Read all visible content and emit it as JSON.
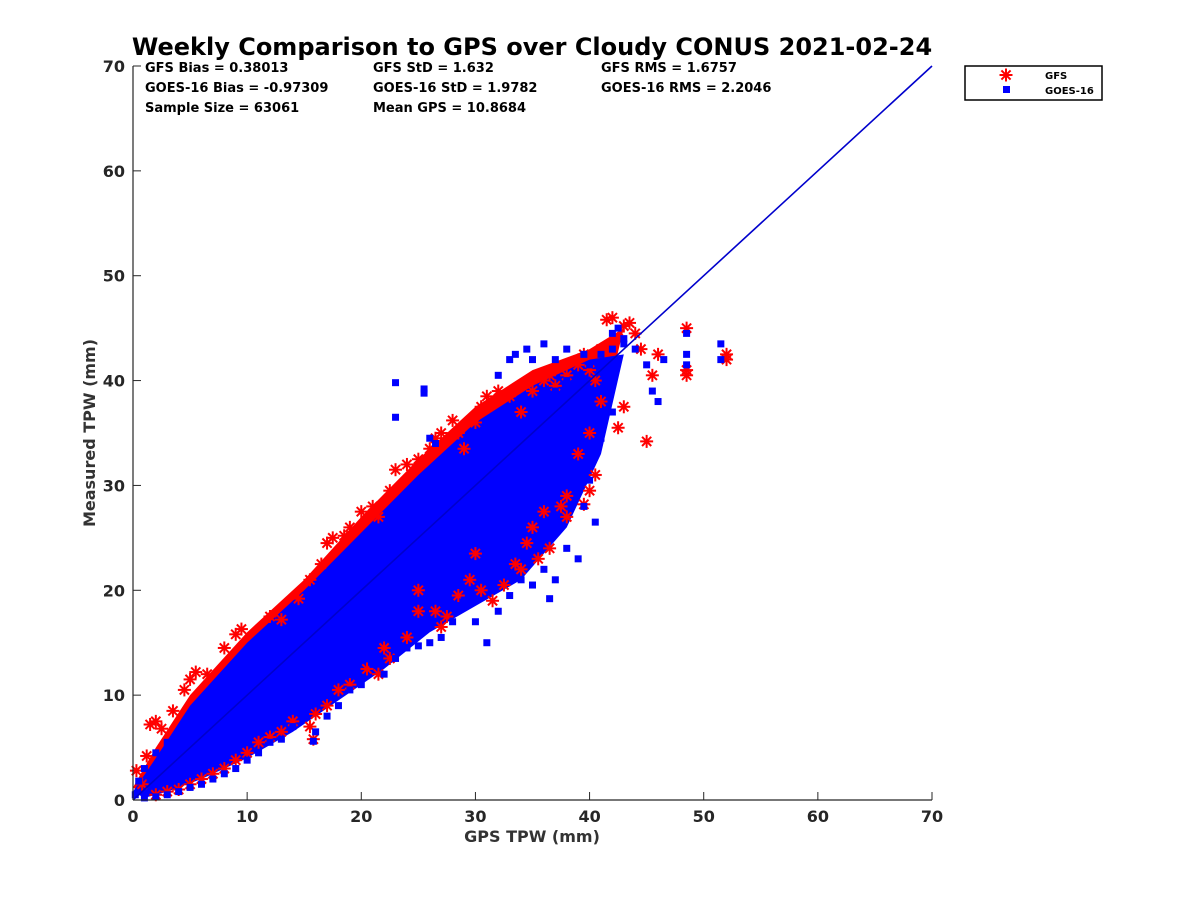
{
  "chart_data": {
    "type": "scatter",
    "title": "Weekly Comparison to GPS over Cloudy CONUS 2021-02-24",
    "xlabel": "GPS TPW (mm)",
    "ylabel": "Measured TPW (mm)",
    "xlim": [
      0,
      70
    ],
    "ylim": [
      0,
      70
    ],
    "xticks": [
      0,
      10,
      20,
      30,
      40,
      50,
      60,
      70
    ],
    "yticks": [
      0,
      10,
      20,
      30,
      40,
      50,
      60,
      70
    ],
    "grid": false,
    "legend_position": "top-right outside",
    "colors": {
      "GFS": "#ff0000",
      "GOES-16": "#0000ff",
      "one_to_one": "#0000cc"
    },
    "reference_line": {
      "x": [
        0,
        70
      ],
      "y": [
        0,
        70
      ]
    },
    "stats": [
      "GFS Bias = 0.38013",
      "GFS StD = 1.632",
      "GFS RMS = 1.6757",
      "GOES-16 Bias = -0.97309",
      "GOES-16 StD = 1.9782",
      "GOES-16 RMS = 2.2046",
      "Sample Size = 63061",
      "Mean GPS = 10.8684"
    ],
    "series": [
      {
        "name": "GFS",
        "marker": "asterisk",
        "points": [
          [
            0.3,
            2.8
          ],
          [
            0.8,
            1.5
          ],
          [
            1.2,
            4.2
          ],
          [
            1.5,
            7.2
          ],
          [
            2,
            7.5
          ],
          [
            2.5,
            6.8
          ],
          [
            3.5,
            8.5
          ],
          [
            4.5,
            10.5
          ],
          [
            5,
            11.5
          ],
          [
            5.5,
            12.2
          ],
          [
            6.5,
            12
          ],
          [
            8,
            14.5
          ],
          [
            9,
            15.8
          ],
          [
            9.5,
            16.3
          ],
          [
            12,
            17.5
          ],
          [
            13,
            17.2
          ],
          [
            14.5,
            19.2
          ],
          [
            15.5,
            21
          ],
          [
            16.5,
            22.5
          ],
          [
            17,
            24.5
          ],
          [
            17.5,
            25
          ],
          [
            18.5,
            25.2
          ],
          [
            19,
            26
          ],
          [
            20,
            27.5
          ],
          [
            21,
            28
          ],
          [
            21.5,
            27
          ],
          [
            22.5,
            29.5
          ],
          [
            23,
            31.5
          ],
          [
            24,
            32
          ],
          [
            25,
            32.5
          ],
          [
            26,
            33.5
          ],
          [
            26.5,
            34.5
          ],
          [
            27,
            35
          ],
          [
            28,
            36.2
          ],
          [
            28.5,
            35
          ],
          [
            29,
            33.5
          ],
          [
            30,
            36
          ],
          [
            30.5,
            37.5
          ],
          [
            31,
            38.5
          ],
          [
            32,
            39
          ],
          [
            33,
            38.5
          ],
          [
            34,
            37
          ],
          [
            35,
            39
          ],
          [
            36,
            40
          ],
          [
            36.5,
            40.5
          ],
          [
            37,
            39.5
          ],
          [
            38,
            40.5
          ],
          [
            39,
            41.5
          ],
          [
            39.5,
            42.5
          ],
          [
            40,
            41
          ],
          [
            40.5,
            40
          ],
          [
            41,
            43
          ],
          [
            41.5,
            45.8
          ],
          [
            42,
            46
          ],
          [
            42.5,
            44
          ],
          [
            43,
            45.2
          ],
          [
            43.5,
            45.5
          ],
          [
            44,
            44.5
          ],
          [
            41,
            38
          ],
          [
            40,
            35
          ],
          [
            39,
            33
          ],
          [
            38,
            29
          ],
          [
            37.5,
            28
          ],
          [
            36,
            27.5
          ],
          [
            35,
            26
          ],
          [
            34.5,
            24.5
          ],
          [
            33.5,
            22.5
          ],
          [
            32.5,
            20.5
          ],
          [
            31.5,
            19
          ],
          [
            30.5,
            20
          ],
          [
            29.5,
            21
          ],
          [
            28.5,
            19.5
          ],
          [
            27.5,
            17.5
          ],
          [
            27,
            16.5
          ],
          [
            26.5,
            18
          ],
          [
            25,
            18
          ],
          [
            24,
            15.5
          ],
          [
            22.5,
            13.5
          ],
          [
            22,
            14.5
          ],
          [
            21.5,
            12
          ],
          [
            20.5,
            12.5
          ],
          [
            19,
            11
          ],
          [
            18,
            10.5
          ],
          [
            17,
            9
          ],
          [
            16,
            8.2
          ],
          [
            15.5,
            7
          ],
          [
            15.8,
            5.8
          ],
          [
            14,
            7.5
          ],
          [
            13,
            6.5
          ],
          [
            12,
            6
          ],
          [
            11,
            5.5
          ],
          [
            10,
            4.5
          ],
          [
            9,
            3.8
          ],
          [
            8,
            3
          ],
          [
            7,
            2.5
          ],
          [
            6,
            2
          ],
          [
            5,
            1.5
          ],
          [
            4,
            1
          ],
          [
            3,
            0.8
          ],
          [
            2,
            0.5
          ],
          [
            43,
            37.5
          ],
          [
            42.5,
            35.5
          ],
          [
            44.5,
            43
          ],
          [
            45,
            34.2
          ],
          [
            45.5,
            40.5
          ],
          [
            46,
            42.5
          ],
          [
            48.5,
            41
          ],
          [
            48.5,
            40.5
          ],
          [
            48.5,
            45
          ],
          [
            52,
            42
          ],
          [
            52,
            42.5
          ],
          [
            40.5,
            31
          ],
          [
            40,
            29.5
          ],
          [
            39.5,
            28.2
          ],
          [
            38,
            27
          ],
          [
            36.5,
            24
          ],
          [
            35.5,
            23
          ],
          [
            34,
            22
          ],
          [
            30,
            23.5
          ],
          [
            25,
            20
          ]
        ]
      },
      {
        "name": "GOES-16",
        "marker": "square",
        "points": [
          [
            0.2,
            0.5
          ],
          [
            0.5,
            1.8
          ],
          [
            1,
            3
          ],
          [
            1.5,
            2
          ],
          [
            2,
            4.5
          ],
          [
            3,
            5.5
          ],
          [
            3.5,
            3.5
          ],
          [
            4,
            6.5
          ],
          [
            5,
            7.5
          ],
          [
            5.5,
            5
          ],
          [
            6,
            8.5
          ],
          [
            7,
            9.5
          ],
          [
            7.5,
            7
          ],
          [
            8,
            10.5
          ],
          [
            9,
            11.5
          ],
          [
            9.5,
            9
          ],
          [
            10,
            12
          ],
          [
            11,
            13
          ],
          [
            11.5,
            10.5
          ],
          [
            12,
            14
          ],
          [
            13,
            15
          ],
          [
            13.5,
            12.5
          ],
          [
            14,
            16
          ],
          [
            15,
            17
          ],
          [
            15.5,
            14.5
          ],
          [
            16,
            18
          ],
          [
            17,
            19
          ],
          [
            17.5,
            16.5
          ],
          [
            18,
            20
          ],
          [
            19,
            21
          ],
          [
            19.5,
            18.5
          ],
          [
            20,
            22
          ],
          [
            21,
            23
          ],
          [
            21.5,
            20.5
          ],
          [
            22,
            24
          ],
          [
            23,
            25
          ],
          [
            23.5,
            22.5
          ],
          [
            24,
            26
          ],
          [
            25,
            27
          ],
          [
            25.5,
            24.5
          ],
          [
            26,
            28
          ],
          [
            27,
            29
          ],
          [
            27.5,
            26.5
          ],
          [
            28,
            30
          ],
          [
            29,
            31
          ],
          [
            29.5,
            28.5
          ],
          [
            30,
            32
          ],
          [
            31,
            33
          ],
          [
            31.5,
            30.5
          ],
          [
            32,
            34
          ],
          [
            33,
            35
          ],
          [
            33.5,
            32.5
          ],
          [
            34,
            36
          ],
          [
            35,
            37
          ],
          [
            35.5,
            34.5
          ],
          [
            36,
            38
          ],
          [
            37,
            39
          ],
          [
            37.5,
            36.5
          ],
          [
            38,
            40
          ],
          [
            39,
            40.5
          ],
          [
            39.5,
            38.5
          ],
          [
            40,
            41.5
          ],
          [
            41,
            42.5
          ],
          [
            41.5,
            40
          ],
          [
            42,
            43
          ],
          [
            43,
            43.5
          ],
          [
            23,
            39.8
          ],
          [
            23,
            36.5
          ],
          [
            25.5,
            39.2
          ],
          [
            25.5,
            38.8
          ],
          [
            26,
            34.5
          ],
          [
            26.5,
            34
          ],
          [
            32,
            40.5
          ],
          [
            33,
            42
          ],
          [
            33.5,
            42.5
          ],
          [
            34.5,
            43
          ],
          [
            35,
            42
          ],
          [
            36,
            43.5
          ],
          [
            37,
            42
          ],
          [
            38,
            43
          ],
          [
            39.5,
            42.5
          ],
          [
            42,
            44.5
          ],
          [
            42.5,
            45
          ],
          [
            43,
            44
          ],
          [
            44,
            43
          ],
          [
            45,
            41.5
          ],
          [
            45.5,
            39
          ],
          [
            46,
            38
          ],
          [
            46.5,
            42
          ],
          [
            48.5,
            42.5
          ],
          [
            48.5,
            41.5
          ],
          [
            48.5,
            44.5
          ],
          [
            51.5,
            43.5
          ],
          [
            51.5,
            42
          ],
          [
            42,
            37
          ],
          [
            41,
            34.5
          ],
          [
            40,
            32
          ],
          [
            40,
            30.5
          ],
          [
            39.5,
            28
          ],
          [
            40.5,
            26.5
          ],
          [
            39,
            23
          ],
          [
            38,
            24
          ],
          [
            37,
            21
          ],
          [
            36.5,
            19.2
          ],
          [
            36,
            22
          ],
          [
            35,
            20.5
          ],
          [
            34,
            21
          ],
          [
            33,
            19.5
          ],
          [
            32,
            18
          ],
          [
            31,
            15
          ],
          [
            30,
            17
          ],
          [
            29,
            19
          ],
          [
            28,
            17
          ],
          [
            27,
            15.5
          ],
          [
            26,
            15
          ],
          [
            25,
            14.7
          ],
          [
            24,
            14.5
          ],
          [
            23,
            13.5
          ],
          [
            22,
            12
          ],
          [
            21,
            13
          ],
          [
            20,
            11
          ],
          [
            19,
            10.5
          ],
          [
            18,
            9
          ],
          [
            17,
            8
          ],
          [
            16,
            6.5
          ],
          [
            15.8,
            5.6
          ],
          [
            14,
            7
          ],
          [
            13,
            5.8
          ],
          [
            12,
            5.5
          ],
          [
            11,
            4.5
          ],
          [
            10,
            3.8
          ],
          [
            9,
            3
          ],
          [
            8,
            2.5
          ],
          [
            7,
            2
          ],
          [
            6,
            1.5
          ],
          [
            5,
            1.2
          ],
          [
            4,
            0.8
          ],
          [
            3,
            0.5
          ],
          [
            2,
            0.3
          ],
          [
            1,
            0.2
          ]
        ]
      }
    ]
  }
}
